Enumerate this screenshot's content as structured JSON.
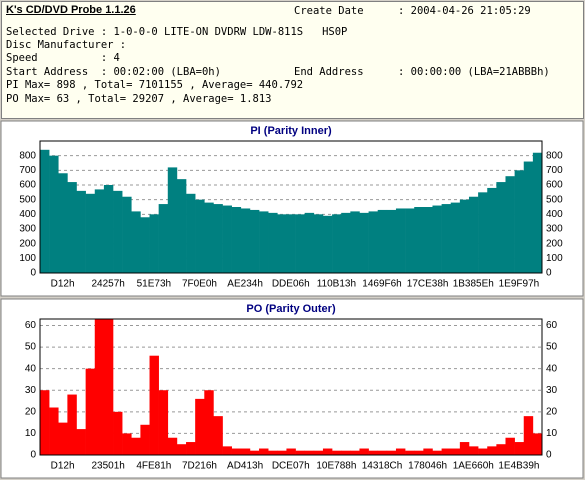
{
  "header": {
    "title": "K's CD/DVD Probe 1.1.26",
    "create_date_label": "Create Date",
    "create_date": ": 2004-04-26 21:05:29",
    "lines": [
      "Selected Drive : 1-0-0-0 LITE-ON DVDRW LDW-811S   HS0P",
      "Disc Manufacturer :",
      "Speed          : 4"
    ],
    "start_address": "Start Address  : 00:02:00 (LBA=0h)",
    "end_address_label": "End Address",
    "end_address": ": 00:00:00 (LBA=21ABBBh)",
    "pi_summary": "PI Max= 898 , Total= 7101155 , Average= 440.792",
    "po_summary": "PO Max= 63 , Total= 29207 , Average= 1.813"
  },
  "chart_data": [
    {
      "type": "bar",
      "title": "PI (Parity Inner)",
      "color": "#008080",
      "grid": true,
      "ylim": [
        0,
        900
      ],
      "yticks": [
        0,
        100,
        200,
        300,
        400,
        500,
        600,
        700,
        800
      ],
      "categories": [
        "D12h",
        null,
        null,
        null,
        null,
        "24257h",
        null,
        null,
        null,
        null,
        "51E73h",
        null,
        null,
        null,
        null,
        "7F0E0h",
        null,
        null,
        null,
        null,
        "AE234h",
        null,
        null,
        null,
        null,
        "DDE06h",
        null,
        null,
        null,
        null,
        "110B13h",
        null,
        null,
        null,
        null,
        "1469F6h",
        null,
        null,
        null,
        null,
        "17CE38h",
        null,
        null,
        null,
        null,
        "1B385Eh",
        null,
        null,
        null,
        null,
        "1E9F97h",
        null,
        null,
        null,
        null
      ],
      "values": [
        840,
        800,
        680,
        620,
        560,
        540,
        570,
        600,
        560,
        520,
        420,
        380,
        400,
        470,
        720,
        640,
        540,
        500,
        480,
        470,
        460,
        450,
        440,
        430,
        420,
        410,
        400,
        400,
        400,
        410,
        400,
        390,
        400,
        410,
        420,
        410,
        420,
        430,
        430,
        440,
        440,
        450,
        450,
        460,
        470,
        480,
        500,
        520,
        550,
        580,
        620,
        660,
        700,
        760,
        820
      ]
    },
    {
      "type": "bar",
      "title": "PO (Parity Outer)",
      "color": "#ff0000",
      "grid": true,
      "ylim": [
        0,
        63
      ],
      "yticks": [
        0,
        10,
        20,
        30,
        40,
        50,
        60
      ],
      "categories": [
        "D12h",
        null,
        null,
        null,
        null,
        "23501h",
        null,
        null,
        null,
        null,
        "4FE81h",
        null,
        null,
        null,
        null,
        "7D216h",
        null,
        null,
        null,
        null,
        "AD413h",
        null,
        null,
        null,
        null,
        "DCE07h",
        null,
        null,
        null,
        null,
        "10E788h",
        null,
        null,
        null,
        null,
        "14318Ch",
        null,
        null,
        null,
        null,
        "178046h",
        null,
        null,
        null,
        null,
        "1AE660h",
        null,
        null,
        null,
        null,
        "1E4B39h",
        null,
        null,
        null,
        null
      ],
      "values": [
        30,
        22,
        15,
        28,
        12,
        40,
        63,
        63,
        20,
        10,
        8,
        14,
        46,
        30,
        8,
        5,
        6,
        26,
        30,
        18,
        4,
        3,
        3,
        2,
        3,
        2,
        2,
        3,
        2,
        2,
        2,
        3,
        2,
        2,
        2,
        3,
        2,
        2,
        2,
        3,
        2,
        2,
        3,
        2,
        3,
        3,
        6,
        4,
        3,
        4,
        5,
        8,
        6,
        18,
        10
      ]
    }
  ]
}
